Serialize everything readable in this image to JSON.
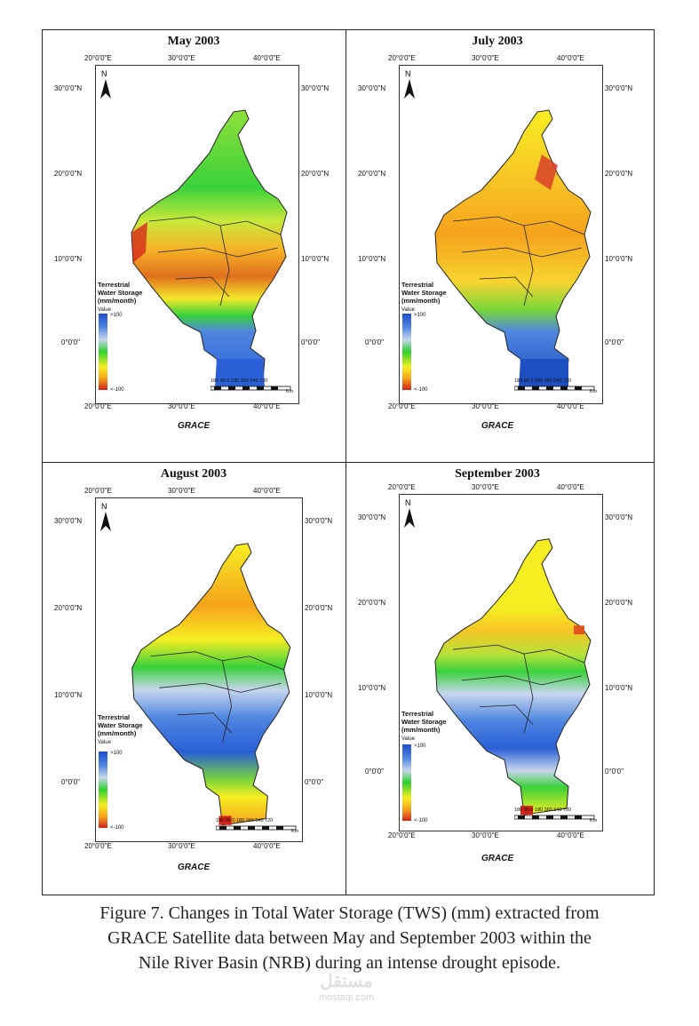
{
  "panels": [
    {
      "title": "May 2003",
      "lon_labels": [
        "20°0'0\"E",
        "30°0'0\"E",
        "40°0'0\"E"
      ],
      "lat_left": [
        "30°0'0\"N",
        "20°0'0\"N",
        "10°0'0\"N",
        "0°0'0\""
      ],
      "lat_right": [
        "30°0'0\"N",
        "20°0'0\"N",
        "10°0'0\"N",
        "0°0'0\""
      ],
      "north": "N",
      "source": "GRACE"
    },
    {
      "title": "July 2003",
      "lon_labels": [
        "20°0'0\"E",
        "30°0'0\"E",
        "40°0'0\"E"
      ],
      "lat_left": [
        "30°0'0\"N",
        "20°0'0\"N",
        "10°0'0\"N",
        "0°0'0\""
      ],
      "lat_right": [
        "30°0'0\"N",
        "20°0'0\"N",
        "10°0'0\"N",
        "0°0'0\""
      ],
      "north": "N",
      "source": "GRACE"
    },
    {
      "title": "August 2003",
      "lon_labels": [
        "20°0'0\"E",
        "30°0'0\"E",
        "40°0'0\"E"
      ],
      "lat_left": [
        "30°0'0\"N",
        "20°0'0\"N",
        "10°0'0\"N",
        "0°0'0\""
      ],
      "lat_right": [
        "30°0'0\"N",
        "20°0'0\"N",
        "10°0'0\"N",
        "0°0'0\""
      ],
      "north": "N",
      "source": "GRACE"
    },
    {
      "title": "September 2003",
      "lon_labels": [
        "20°0'0\"E",
        "30°0'0\"E",
        "40°0'0\"E"
      ],
      "lat_left": [
        "30°0'0\"N",
        "20°0'0\"N",
        "10°0'0\"N",
        "0°0'0\""
      ],
      "lat_right": [
        "30°0'0\"N",
        "20°0'0\"N",
        "10°0'0\"N",
        "0°0'0\""
      ],
      "north": "N",
      "source": "GRACE"
    }
  ],
  "legend": {
    "title_lines": [
      "Terrestrial",
      "Water Storage",
      "(mm/month)"
    ],
    "value_label": "Value",
    "high": ">100",
    "low": "<-100",
    "ramp_colors": [
      "#1f4fc8",
      "#4f86e0",
      "#c7d6ee",
      "#2fd12f",
      "#f7ee22",
      "#f5a31c",
      "#d2221a"
    ]
  },
  "scale": {
    "ticks": "180 90 0   180 360 540 720",
    "unit": "Km"
  },
  "caption": {
    "line1": "Figure 7. Changes in Total Water Storage (TWS) (mm) extracted from",
    "line2": "GRACE Satellite data between May and September 2003 within the",
    "line3": "Nile River Basin (NRB) during an intense drought episode."
  },
  "watermark": {
    "arabic": "مستقل",
    "latin": "mostaqi.com"
  },
  "map_fills": {
    "may": [
      "#3ad13a",
      "#9fe23a",
      "#f3e82a",
      "#f6b428",
      "#e07020",
      "#d9402a",
      "#2a5fd6"
    ],
    "july": [
      "#f7ee22",
      "#f7c425",
      "#f5a31c",
      "#e0561c",
      "#d9402a",
      "#7ad63a",
      "#1e4fc0"
    ],
    "august": [
      "#f7ee22",
      "#f7c425",
      "#f5a31c",
      "#3ad13a",
      "#c7d6ee",
      "#4f86e0",
      "#2a5fd6",
      "#d2221a"
    ],
    "september": [
      "#f7ee22",
      "#f7c425",
      "#3ad13a",
      "#c7d6ee",
      "#4f86e0",
      "#2a5fd6",
      "#e0561c"
    ]
  }
}
